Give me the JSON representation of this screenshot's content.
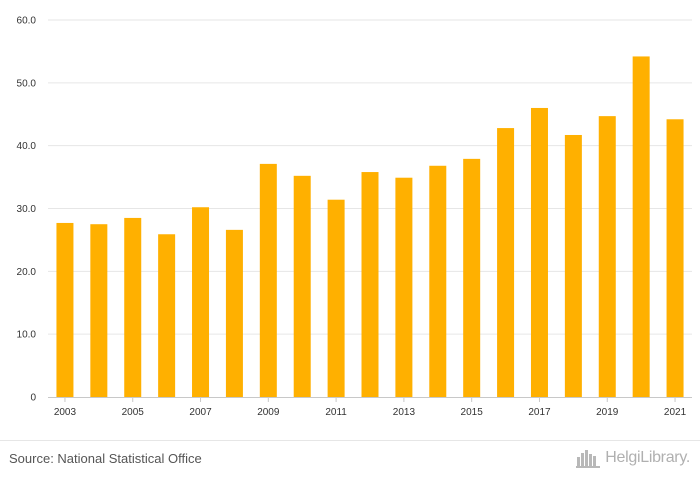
{
  "chart_data": {
    "type": "bar",
    "title": "",
    "xlabel": "",
    "ylabel": "",
    "categories": [
      "2003",
      "2004",
      "2005",
      "2006",
      "2007",
      "2008",
      "2009",
      "2010",
      "2011",
      "2012",
      "2013",
      "2014",
      "2015",
      "2016",
      "2017",
      "2018",
      "2019",
      "2020",
      "2021"
    ],
    "values": [
      27.7,
      27.5,
      28.5,
      25.9,
      30.2,
      26.6,
      37.1,
      35.2,
      31.4,
      35.8,
      34.9,
      36.8,
      37.9,
      42.8,
      46.0,
      41.7,
      44.7,
      54.2,
      44.2
    ],
    "x_tick_labels": [
      "2003",
      "2005",
      "2007",
      "2009",
      "2011",
      "2013",
      "2015",
      "2017",
      "2019",
      "2021"
    ],
    "ylim": [
      0,
      60
    ],
    "y_ticks": [
      0,
      10,
      20,
      30,
      40,
      50,
      60
    ],
    "y_tick_labels": [
      "0",
      "10.0",
      "20.0",
      "30.0",
      "40.0",
      "50.0",
      "60.0"
    ],
    "bar_color": "#FFB000",
    "grid": true
  },
  "footer": {
    "source": "Source: National Statistical Office",
    "brand": "HelgiLibrary."
  }
}
